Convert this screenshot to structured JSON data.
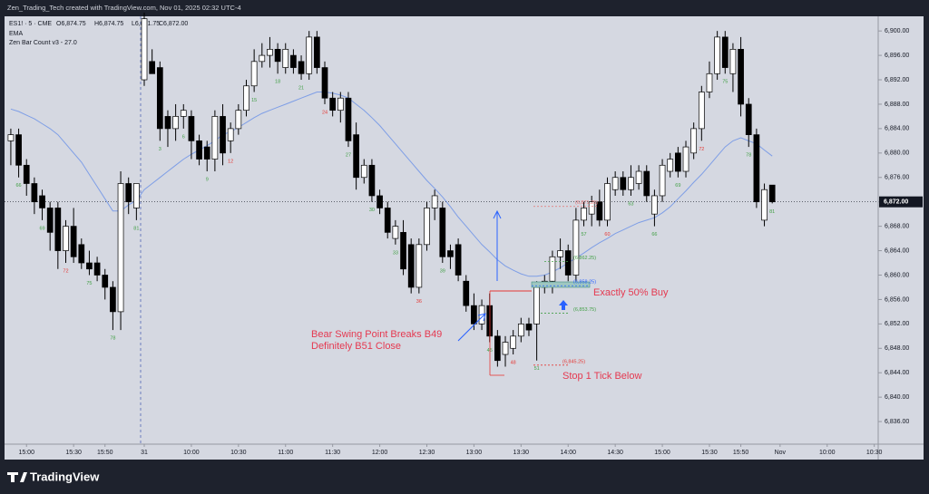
{
  "chart_data": {
    "type": "candlestick",
    "source": "Zen_Trading_Tech created with TradingView.com, Nov 01, 2025 02:32 UTC-4",
    "symbol": "ES1! · 5 · CME",
    "ohlc": [
      {
        "value": 6874.75,
        "label": "O6,874.75"
      },
      {
        "value": 6874.75,
        "label": "H6,874.75"
      },
      {
        "value": 6871.75,
        "label": "L6,871.75"
      },
      {
        "value": 6872,
        "label": "C6,872.00"
      }
    ],
    "indicators": [
      "EMA",
      "Zen Bar Count v3 - 27.0"
    ],
    "brand": "TradingView",
    "xlim": [
      -0.8,
      110.5
    ],
    "ylim": [
      6832.3,
      6902.4
    ],
    "xticks": [
      {
        "value": 2,
        "label": "15:00"
      },
      {
        "value": 8,
        "label": "15:30"
      },
      {
        "value": 12,
        "label": "15:50"
      },
      {
        "value": 17,
        "label": "31"
      },
      {
        "value": 23,
        "label": "10:00"
      },
      {
        "value": 29,
        "label": "10:30"
      },
      {
        "value": 35,
        "label": "11:00"
      },
      {
        "value": 41,
        "label": "11:30"
      },
      {
        "value": 47,
        "label": "12:00"
      },
      {
        "value": 53,
        "label": "12:30"
      },
      {
        "value": 59,
        "label": "13:00"
      },
      {
        "value": 65,
        "label": "13:30"
      },
      {
        "value": 71,
        "label": "14:00"
      },
      {
        "value": 77,
        "label": "14:30"
      },
      {
        "value": 83,
        "label": "15:00"
      },
      {
        "value": 89,
        "label": "15:30"
      },
      {
        "value": 93,
        "label": "15:50"
      },
      {
        "value": 98,
        "label": "Nov"
      },
      {
        "value": 104,
        "label": "10:00"
      },
      {
        "value": 110,
        "label": "10:30"
      }
    ],
    "yticks": [
      {
        "value": 6836,
        "label": "6,836.00"
      },
      {
        "value": 6840,
        "label": "6,840.00"
      },
      {
        "value": 6844,
        "label": "6,844.00"
      },
      {
        "value": 6848,
        "label": "6,848.00"
      },
      {
        "value": 6852,
        "label": "6,852.00"
      },
      {
        "value": 6856,
        "label": "6,856.00"
      },
      {
        "value": 6860,
        "label": "6,860.00"
      },
      {
        "value": 6864,
        "label": "6,864.00"
      },
      {
        "value": 6868,
        "label": "6,868.00"
      },
      {
        "value": 6872,
        "label": "6,872.00"
      },
      {
        "value": 6876,
        "label": "6,876.00"
      },
      {
        "value": 6880,
        "label": "6,880.00"
      },
      {
        "value": 6884,
        "label": "6,884.00"
      },
      {
        "value": 6888,
        "label": "6,888.00"
      },
      {
        "value": 6892,
        "label": "6,892.00"
      },
      {
        "value": 6896,
        "label": "6,896.00"
      },
      {
        "value": 6900,
        "label": "6,900.00"
      }
    ],
    "last_price": {
      "value": 6872,
      "label": "6,872.00"
    },
    "up_color": "#ffffff",
    "down_color": "#000000",
    "candles": [
      {
        "o": 6882,
        "h": 6884,
        "l": 6878,
        "c": 6883
      },
      {
        "o": 6883,
        "h": 6884,
        "l": 6876,
        "c": 6878,
        "count": "66",
        "count_color": "#43a047"
      },
      {
        "o": 6878,
        "h": 6879,
        "l": 6873,
        "c": 6875
      },
      {
        "o": 6875,
        "h": 6876,
        "l": 6870,
        "c": 6872
      },
      {
        "o": 6873,
        "h": 6874,
        "l": 6869,
        "c": 6871,
        "count": "69",
        "count_color": "#43a047"
      },
      {
        "o": 6871,
        "h": 6872,
        "l": 6864,
        "c": 6867
      },
      {
        "o": 6871,
        "h": 6872,
        "l": 6861,
        "c": 6864
      },
      {
        "o": 6864,
        "h": 6869,
        "l": 6862,
        "c": 6868,
        "count": "72",
        "count_color": "#e53935"
      },
      {
        "o": 6868,
        "h": 6871,
        "l": 6862,
        "c": 6863
      },
      {
        "o": 6865,
        "h": 6866,
        "l": 6861,
        "c": 6862
      },
      {
        "o": 6862,
        "h": 6864,
        "l": 6860,
        "c": 6861,
        "count": "75",
        "count_color": "#43a047"
      },
      {
        "o": 6862,
        "h": 6863,
        "l": 6859,
        "c": 6860
      },
      {
        "o": 6860,
        "h": 6861,
        "l": 6856,
        "c": 6858
      },
      {
        "o": 6858,
        "h": 6859,
        "l": 6851,
        "c": 6854,
        "count": "78",
        "count_color": "#43a047"
      },
      {
        "o": 6854,
        "h": 6877,
        "l": 6851,
        "c": 6875
      },
      {
        "o": 6875,
        "h": 6876,
        "l": 6870,
        "c": 6872
      },
      {
        "o": 6871,
        "h": 6875,
        "l": 6869,
        "c": 6875,
        "count": "81",
        "count_color": "#43a047"
      },
      {
        "o": 6892,
        "h": 6903,
        "l": 6891,
        "c": 6902
      },
      {
        "o": 6895,
        "h": 6897,
        "l": 6893,
        "c": 6893
      },
      {
        "o": 6894,
        "h": 6895,
        "l": 6882,
        "c": 6884,
        "count": "3",
        "count_color": "#43a047"
      },
      {
        "o": 6886,
        "h": 6887,
        "l": 6881,
        "c": 6884
      },
      {
        "o": 6884,
        "h": 6888,
        "l": 6882,
        "c": 6886
      },
      {
        "o": 6886,
        "h": 6888,
        "l": 6884,
        "c": 6887,
        "count": "6",
        "count_color": "#43a047"
      },
      {
        "o": 6886,
        "h": 6887,
        "l": 6879,
        "c": 6882
      },
      {
        "o": 6882,
        "h": 6883,
        "l": 6878,
        "c": 6879
      },
      {
        "o": 6881,
        "h": 6882,
        "l": 6877,
        "c": 6879,
        "count": "9",
        "count_color": "#43a047"
      },
      {
        "o": 6879,
        "h": 6887,
        "l": 6877,
        "c": 6886
      },
      {
        "o": 6886,
        "h": 6888,
        "l": 6878,
        "c": 6880
      },
      {
        "o": 6882,
        "h": 6885,
        "l": 6880,
        "c": 6884,
        "count": "12",
        "count_color": "#e53935"
      },
      {
        "o": 6884,
        "h": 6888,
        "l": 6883,
        "c": 6887
      },
      {
        "o": 6887,
        "h": 6892,
        "l": 6886,
        "c": 6891
      },
      {
        "o": 6891,
        "h": 6897,
        "l": 6890,
        "c": 6895,
        "count": "15",
        "count_color": "#43a047"
      },
      {
        "o": 6895,
        "h": 6898,
        "l": 6894,
        "c": 6896
      },
      {
        "o": 6896,
        "h": 6899,
        "l": 6894,
        "c": 6897
      },
      {
        "o": 6897,
        "h": 6898,
        "l": 6893,
        "c": 6895,
        "count": "18",
        "count_color": "#43a047"
      },
      {
        "o": 6894,
        "h": 6898,
        "l": 6893,
        "c": 6897
      },
      {
        "o": 6896,
        "h": 6897,
        "l": 6893,
        "c": 6894
      },
      {
        "o": 6895,
        "h": 6896,
        "l": 6892,
        "c": 6893,
        "count": "21",
        "count_color": "#43a047"
      },
      {
        "o": 6893,
        "h": 6900,
        "l": 6892,
        "c": 6899
      },
      {
        "o": 6899,
        "h": 6900,
        "l": 6893,
        "c": 6894
      },
      {
        "o": 6894,
        "h": 6895,
        "l": 6888,
        "c": 6889,
        "count": "24",
        "count_color": "#e53935"
      },
      {
        "o": 6889,
        "h": 6890,
        "l": 6886,
        "c": 6887
      },
      {
        "o": 6887,
        "h": 6890,
        "l": 6885,
        "c": 6889
      },
      {
        "o": 6889,
        "h": 6890,
        "l": 6881,
        "c": 6882,
        "count": "27",
        "count_color": "#43a047"
      },
      {
        "o": 6883,
        "h": 6885,
        "l": 6874,
        "c": 6876
      },
      {
        "o": 6876,
        "h": 6879,
        "l": 6875,
        "c": 6878
      },
      {
        "o": 6878,
        "h": 6879,
        "l": 6872,
        "c": 6873,
        "count": "30",
        "count_color": "#43a047"
      },
      {
        "o": 6873,
        "h": 6874,
        "l": 6870,
        "c": 6871
      },
      {
        "o": 6871,
        "h": 6872,
        "l": 6866,
        "c": 6867
      },
      {
        "o": 6866,
        "h": 6869,
        "l": 6865,
        "c": 6868,
        "count": "33",
        "count_color": "#43a047"
      },
      {
        "o": 6867,
        "h": 6869,
        "l": 6860,
        "c": 6861
      },
      {
        "o": 6865,
        "h": 6866,
        "l": 6857,
        "c": 6858
      },
      {
        "o": 6858,
        "h": 6866,
        "l": 6857,
        "c": 6865,
        "count": "36",
        "count_color": "#e53935"
      },
      {
        "o": 6865,
        "h": 6872,
        "l": 6864,
        "c": 6871
      },
      {
        "o": 6871,
        "h": 6874,
        "l": 6869,
        "c": 6873
      },
      {
        "o": 6871,
        "h": 6872,
        "l": 6862,
        "c": 6863,
        "count": "39",
        "count_color": "#43a047"
      },
      {
        "o": 6864,
        "h": 6865,
        "l": 6861,
        "c": 6863
      },
      {
        "o": 6865,
        "h": 6866,
        "l": 6859,
        "c": 6860
      },
      {
        "o": 6859,
        "h": 6860,
        "l": 6854,
        "c": 6855
      },
      {
        "o": 6855,
        "h": 6857,
        "l": 6851,
        "c": 6852
      },
      {
        "o": 6852,
        "h": 6856,
        "l": 6851,
        "c": 6855
      },
      {
        "o": 6855,
        "h": 6857,
        "l": 6849,
        "c": 6850,
        "count": "45",
        "count_color": "#43a047"
      },
      {
        "o": 6850,
        "h": 6851,
        "l": 6845,
        "c": 6846
      },
      {
        "o": 6847,
        "h": 6850,
        "l": 6845,
        "c": 6849
      },
      {
        "o": 6848,
        "h": 6851,
        "l": 6847,
        "c": 6850,
        "count": "48",
        "count_color": "#e53935"
      },
      {
        "o": 6850,
        "h": 6853,
        "l": 6849,
        "c": 6852
      },
      {
        "o": 6852,
        "h": 6853,
        "l": 6850,
        "c": 6851
      },
      {
        "o": 6852,
        "h": 6859,
        "l": 6846,
        "c": 6858,
        "count": "51",
        "count_color": "#43a047"
      },
      {
        "o": 6858,
        "h": 6860,
        "l": 6857,
        "c": 6859
      },
      {
        "o": 6859,
        "h": 6864,
        "l": 6857,
        "c": 6863
      },
      {
        "o": 6863,
        "h": 6866,
        "l": 6861,
        "c": 6864
      },
      {
        "o": 6864,
        "h": 6865,
        "l": 6859,
        "c": 6860
      },
      {
        "o": 6860,
        "h": 6871,
        "l": 6859,
        "c": 6869
      },
      {
        "o": 6869,
        "h": 6872,
        "l": 6868,
        "c": 6871,
        "count": "57",
        "count_color": "#43a047"
      },
      {
        "o": 6870,
        "h": 6873,
        "l": 6868,
        "c": 6872
      },
      {
        "o": 6872,
        "h": 6874,
        "l": 6868,
        "c": 6869
      },
      {
        "o": 6869,
        "h": 6876,
        "l": 6868,
        "c": 6875,
        "count": "60",
        "count_color": "#e53935"
      },
      {
        "o": 6874,
        "h": 6877,
        "l": 6873,
        "c": 6876
      },
      {
        "o": 6876,
        "h": 6877,
        "l": 6873,
        "c": 6874
      },
      {
        "o": 6874,
        "h": 6878,
        "l": 6873,
        "c": 6876,
        "count": "63",
        "count_color": "#43a047"
      },
      {
        "o": 6875,
        "h": 6878,
        "l": 6874,
        "c": 6877
      },
      {
        "o": 6877,
        "h": 6878,
        "l": 6872,
        "c": 6873
      },
      {
        "o": 6870,
        "h": 6874,
        "l": 6868,
        "c": 6873,
        "count": "66",
        "count_color": "#43a047"
      },
      {
        "o": 6873,
        "h": 6879,
        "l": 6872,
        "c": 6878
      },
      {
        "o": 6877,
        "h": 6880,
        "l": 6876,
        "c": 6879
      },
      {
        "o": 6880,
        "h": 6881,
        "l": 6876,
        "c": 6877,
        "count": "69",
        "count_color": "#43a047"
      },
      {
        "o": 6877,
        "h": 6882,
        "l": 6876,
        "c": 6881
      },
      {
        "o": 6880,
        "h": 6885,
        "l": 6879,
        "c": 6884
      },
      {
        "o": 6884,
        "h": 6891,
        "l": 6882,
        "c": 6890,
        "count": "72",
        "count_color": "#e53935"
      },
      {
        "o": 6890,
        "h": 6895,
        "l": 6889,
        "c": 6893
      },
      {
        "o": 6893,
        "h": 6900,
        "l": 6892,
        "c": 6899
      },
      {
        "o": 6899,
        "h": 6900,
        "l": 6893,
        "c": 6894,
        "count": "75",
        "count_color": "#43a047"
      },
      {
        "o": 6893,
        "h": 6898,
        "l": 6890,
        "c": 6897
      },
      {
        "o": 6897,
        "h": 6899,
        "l": 6886,
        "c": 6888
      },
      {
        "o": 6888,
        "h": 6889,
        "l": 6881,
        "c": 6883,
        "count": "78",
        "count_color": "#43a047"
      },
      {
        "o": 6883,
        "h": 6884,
        "l": 6871,
        "c": 6872
      },
      {
        "o": 6869,
        "h": 6875,
        "l": 6868,
        "c": 6874
      },
      {
        "o": 6874.75,
        "h": 6874.75,
        "l": 6871.75,
        "c": 6872,
        "count": "81",
        "count_color": "#43a047"
      }
    ],
    "ema": {
      "color": "#7e9ee6",
      "values": [
        6887.2,
        6886.8,
        6886.2,
        6885.6,
        6884.8,
        6884,
        6883,
        6881.5,
        6880,
        6878.5,
        6876.5,
        6874.5,
        6872.5,
        6870.5,
        6870.5,
        6871.5,
        6872.2,
        6874,
        6875,
        6876,
        6877,
        6878,
        6879,
        6879.8,
        6880.5,
        6881.2,
        6882,
        6883,
        6883.5,
        6884.2,
        6885,
        6885.8,
        6886.5,
        6887,
        6887.5,
        6888,
        6888.5,
        6889,
        6889.5,
        6890,
        6890,
        6889.8,
        6889.5,
        6889,
        6888,
        6887,
        6885.8,
        6884.5,
        6883,
        6881.5,
        6880,
        6878.5,
        6877,
        6875.5,
        6874.2,
        6872.8,
        6871.2,
        6869.5,
        6868,
        6866.5,
        6865,
        6863.8,
        6862.5,
        6861.5,
        6860.8,
        6860.2,
        6859.8,
        6859.8,
        6860,
        6860.5,
        6861.2,
        6862,
        6862.8,
        6863.6,
        6864.5,
        6865.3,
        6866,
        6866.8,
        6867.4,
        6868,
        6868.6,
        6869,
        6869.4,
        6870.2,
        6871.2,
        6872.5,
        6873.8,
        6875.2,
        6876.5,
        6878,
        6879.5,
        6881,
        6882,
        6882.5,
        6882,
        6881.5,
        6880.5,
        6879.5
      ]
    },
    "price_labels": [
      {
        "value": 6871.25,
        "label": "(6,871.25)",
        "color": "#e57373"
      },
      {
        "value": 6862.25,
        "label": "(6,862.25)",
        "color": "#43a047"
      },
      {
        "value": 6858.25,
        "label": "(6,858.25)",
        "color": "#2962ff"
      },
      {
        "value": 6853.75,
        "label": "(6,853.75)",
        "color": "#43a047"
      },
      {
        "value": 6845.25,
        "label": "(6,845.25)",
        "color": "#e53935"
      }
    ],
    "annotations": [
      "Bear Swing Point Breaks B49",
      "Definitely B51 Close",
      "Exactly 50% Buy",
      "Stop 1 Tick Below"
    ]
  }
}
